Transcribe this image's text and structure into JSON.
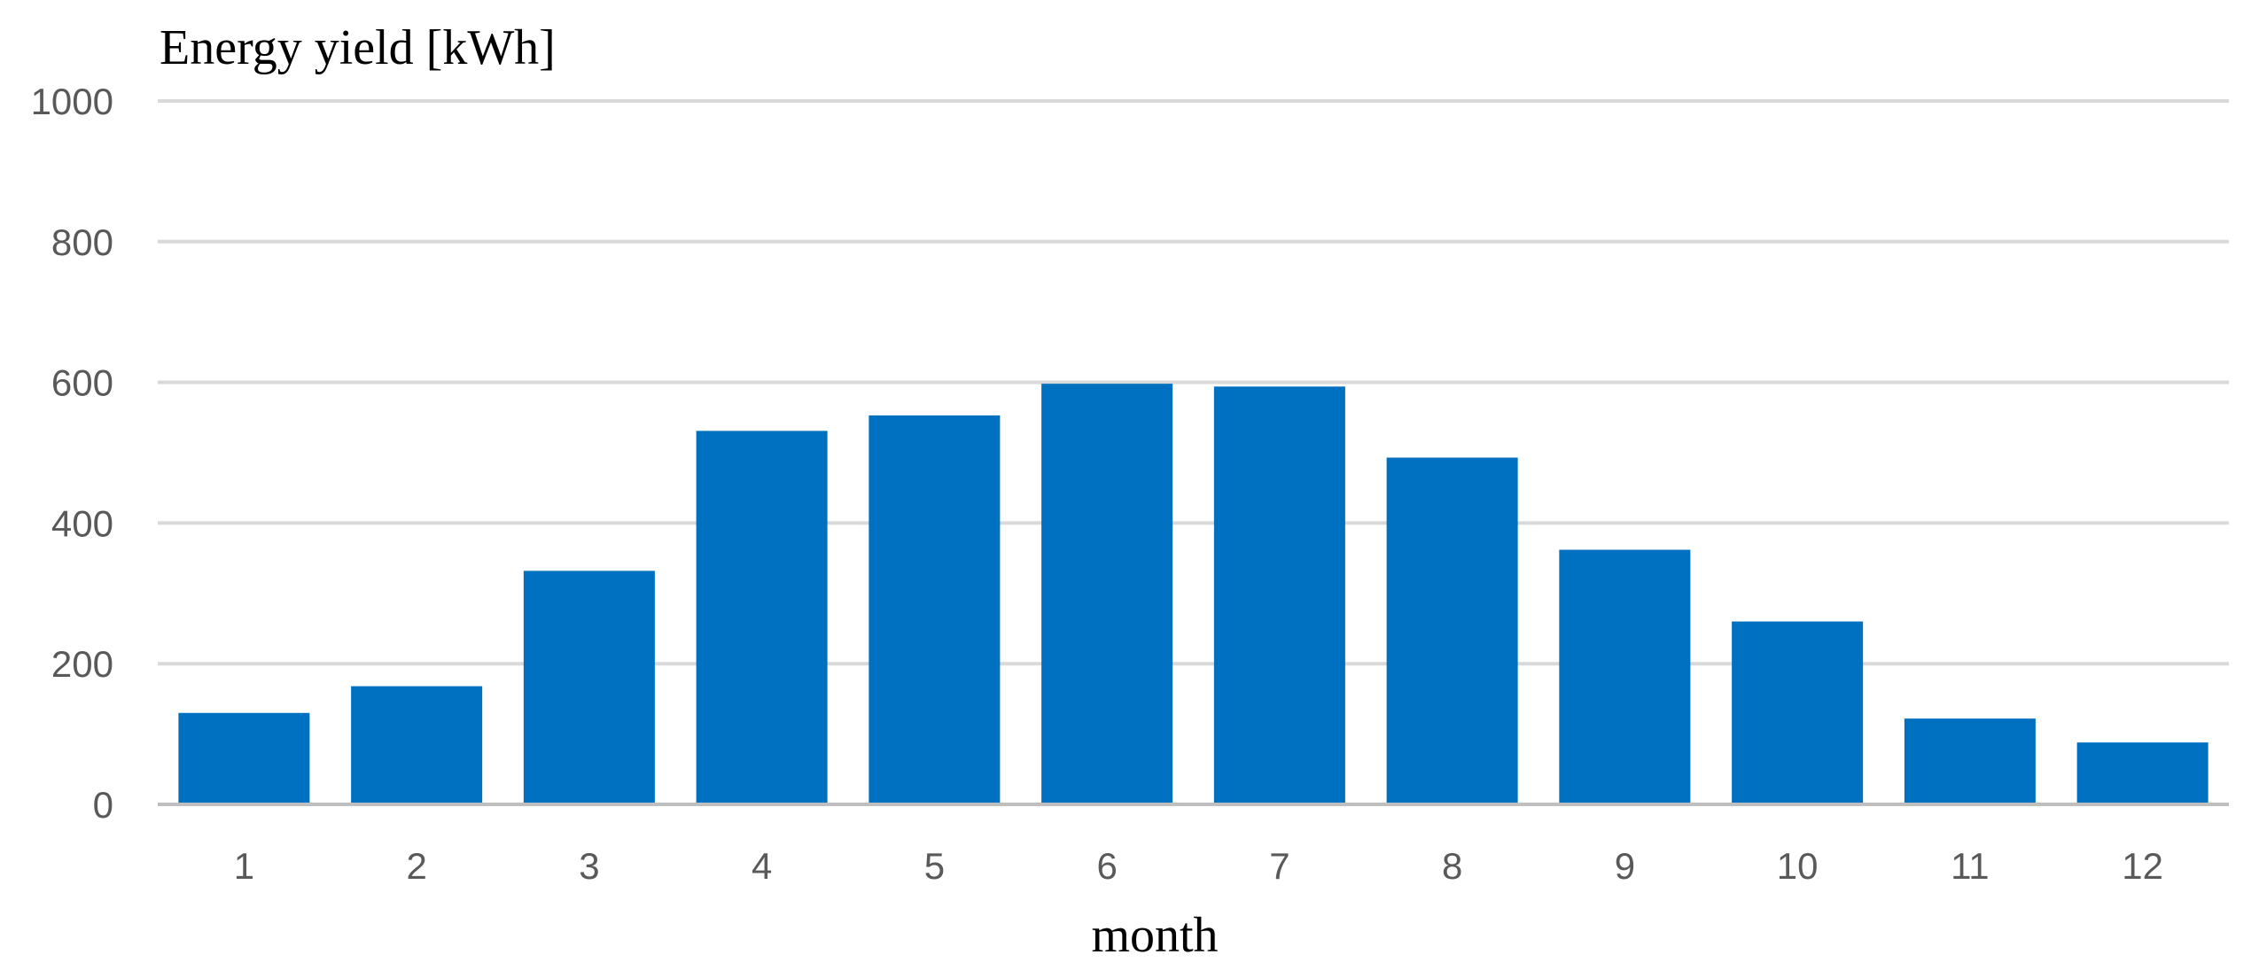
{
  "chart_data": {
    "type": "bar",
    "title": "Energy yield [kWh]",
    "xlabel": "month",
    "ylabel": "",
    "categories": [
      "1",
      "2",
      "3",
      "4",
      "5",
      "6",
      "7",
      "8",
      "9",
      "10",
      "11",
      "12"
    ],
    "values": [
      130,
      168,
      332,
      531,
      553,
      598,
      594,
      493,
      362,
      260,
      122,
      88
    ],
    "ylim": [
      0,
      1000
    ],
    "yticks": [
      "0",
      "200",
      "400",
      "600",
      "800",
      "1000"
    ],
    "grid": true,
    "legend": "none",
    "colors": {
      "bar": "#0070c0",
      "grid": "#d9d9d9",
      "axis": "#bfbfbf",
      "tick_text": "#595959"
    }
  }
}
